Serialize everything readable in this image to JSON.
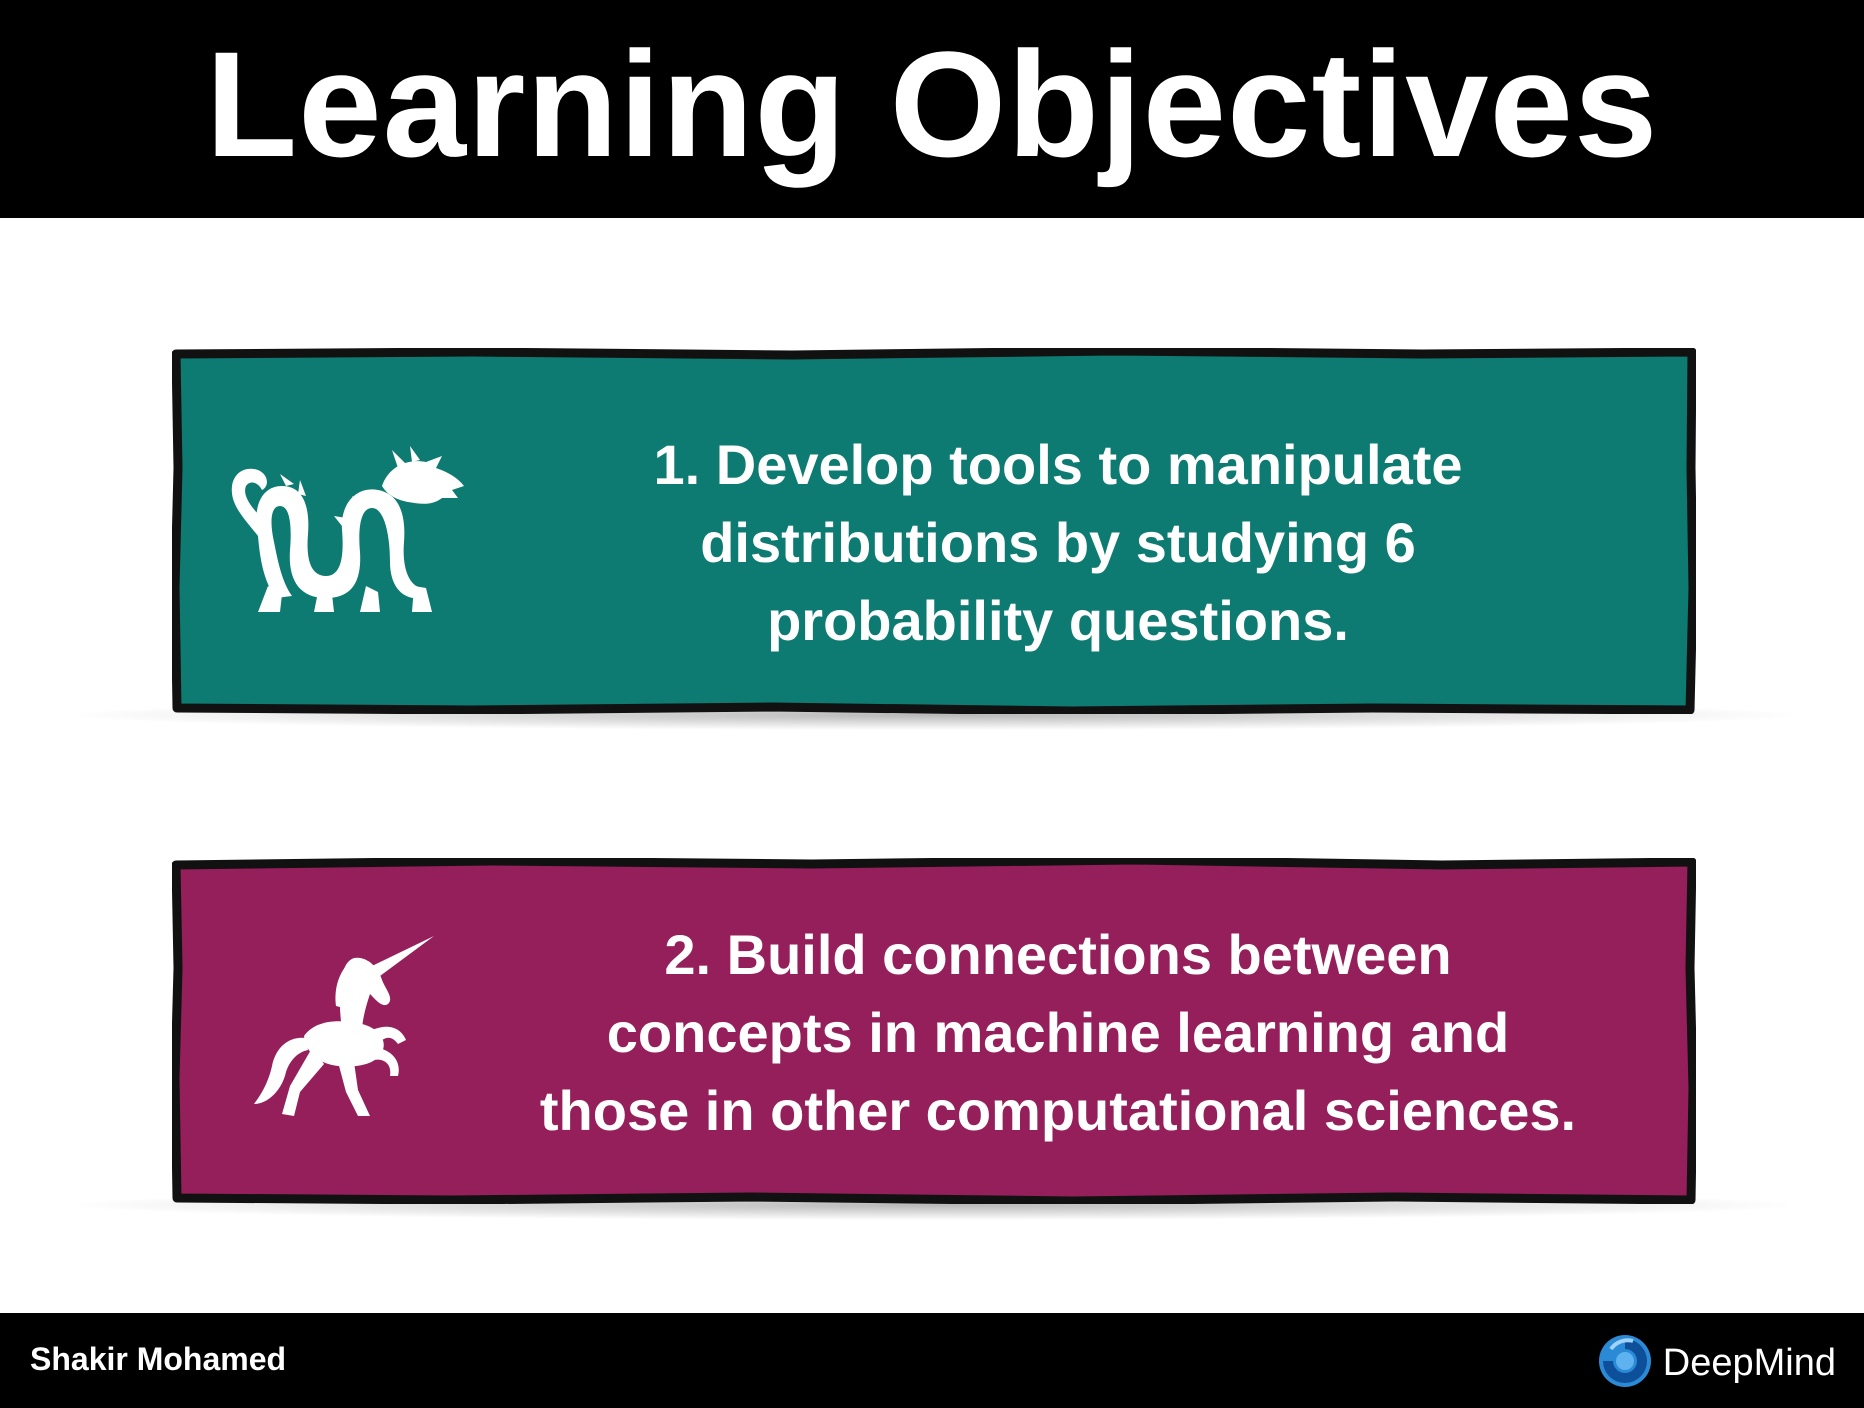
{
  "header": {
    "title": "Learning Objectives"
  },
  "objectives": [
    {
      "lines": [
        "1. Develop tools to manipulate",
        "distributions by studying 6",
        "probability questions."
      ],
      "icon": "dragon-icon",
      "color": "#0d7b72"
    },
    {
      "lines": [
        "2. Build connections between",
        "concepts in machine learning and",
        "those in other computational sciences."
      ],
      "icon": "unicorn-icon",
      "color": "#951f5a"
    }
  ],
  "footer": {
    "author": "Shakir Mohamed",
    "brand": "DeepMind",
    "brand_icon": "deepmind-logo-icon",
    "brand_color": "#2a8ad6"
  }
}
